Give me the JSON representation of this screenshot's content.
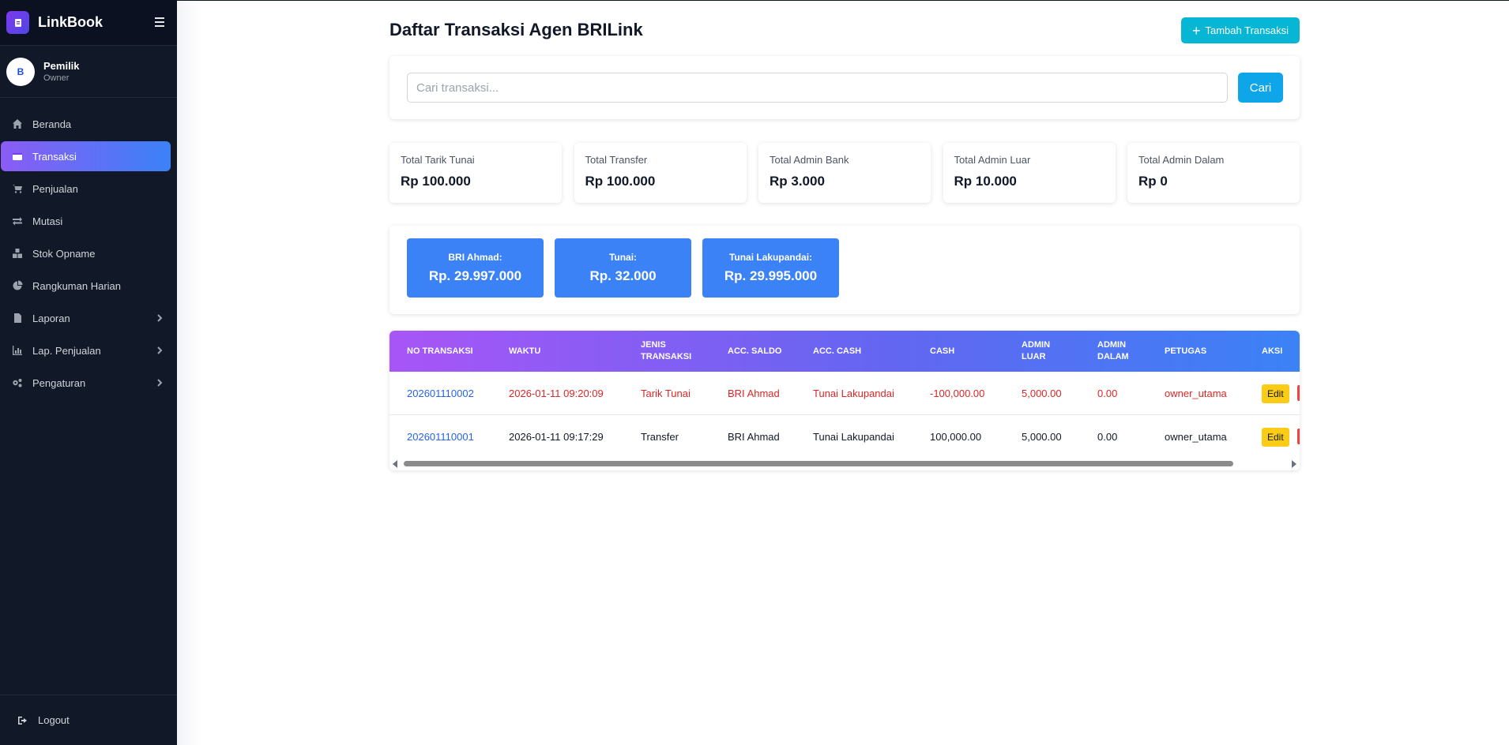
{
  "app": {
    "name": "LinkBook"
  },
  "user": {
    "name": "Pemilik",
    "role": "Owner",
    "avatar_text": "B"
  },
  "sidebar": {
    "items": [
      {
        "label": "Beranda",
        "icon": "home-icon"
      },
      {
        "label": "Transaksi",
        "icon": "wallet-icon",
        "active": true
      },
      {
        "label": "Penjualan",
        "icon": "cart-icon"
      },
      {
        "label": "Mutasi",
        "icon": "exchange-icon"
      },
      {
        "label": "Stok Opname",
        "icon": "boxes-icon"
      },
      {
        "label": "Rangkuman Harian",
        "icon": "pie-chart-icon"
      },
      {
        "label": "Laporan",
        "icon": "file-icon",
        "has_children": true
      },
      {
        "label": "Lap. Penjualan",
        "icon": "bar-chart-icon",
        "has_children": true
      },
      {
        "label": "Pengaturan",
        "icon": "gears-icon",
        "has_children": true
      }
    ],
    "logout_label": "Logout"
  },
  "page": {
    "title": "Daftar Transaksi Agen BRILink",
    "add_button": "Tambah Transaksi"
  },
  "search": {
    "placeholder": "Cari transaksi...",
    "value": "",
    "button": "Cari"
  },
  "stats": [
    {
      "label": "Total Tarik Tunai",
      "value": "Rp 100.000"
    },
    {
      "label": "Total Transfer",
      "value": "Rp 100.000"
    },
    {
      "label": "Total Admin Bank",
      "value": "Rp 3.000"
    },
    {
      "label": "Total Admin Luar",
      "value": "Rp 10.000"
    },
    {
      "label": "Total Admin Dalam",
      "value": "Rp 0"
    }
  ],
  "balances": [
    {
      "label": "BRI Ahmad:",
      "value": "Rp. 29.997.000"
    },
    {
      "label": "Tunai:",
      "value": "Rp. 32.000"
    },
    {
      "label": "Tunai Lakupandai:",
      "value": "Rp. 29.995.000"
    }
  ],
  "table": {
    "columns": [
      "No Transaksi",
      "Waktu",
      "Jenis Transaksi",
      "Acc. Saldo",
      "Acc. Cash",
      "Cash",
      "Admin Luar",
      "Admin Dalam",
      "Petugas",
      "Aksi"
    ],
    "rows": [
      {
        "no": "202601110002",
        "waktu": "2026-01-11 09:20:09",
        "jenis": "Tarik Tunai",
        "acc_saldo": "BRI Ahmad",
        "acc_cash": "Tunai Lakupandai",
        "cash": "-100,000.00",
        "admin_luar": "5,000.00",
        "admin_dalam": "0.00",
        "petugas": "owner_utama",
        "edit": "Edit",
        "highlight": "red"
      },
      {
        "no": "202601110001",
        "waktu": "2026-01-11 09:17:29",
        "jenis": "Transfer",
        "acc_saldo": "BRI Ahmad",
        "acc_cash": "Tunai Lakupandai",
        "cash": "100,000.00",
        "admin_luar": "5,000.00",
        "admin_dalam": "0.00",
        "petugas": "owner_utama",
        "edit": "Edit",
        "highlight": "none"
      }
    ]
  },
  "colors": {
    "sidebar_bg": "#111827",
    "active_gradient": [
      "#8b5cf6",
      "#3b82f6"
    ],
    "primary_cyan": "#06b6d4",
    "balance_blue": "#3b82f6",
    "danger_text": "#dc2626",
    "edit_yellow": "#facc15"
  }
}
